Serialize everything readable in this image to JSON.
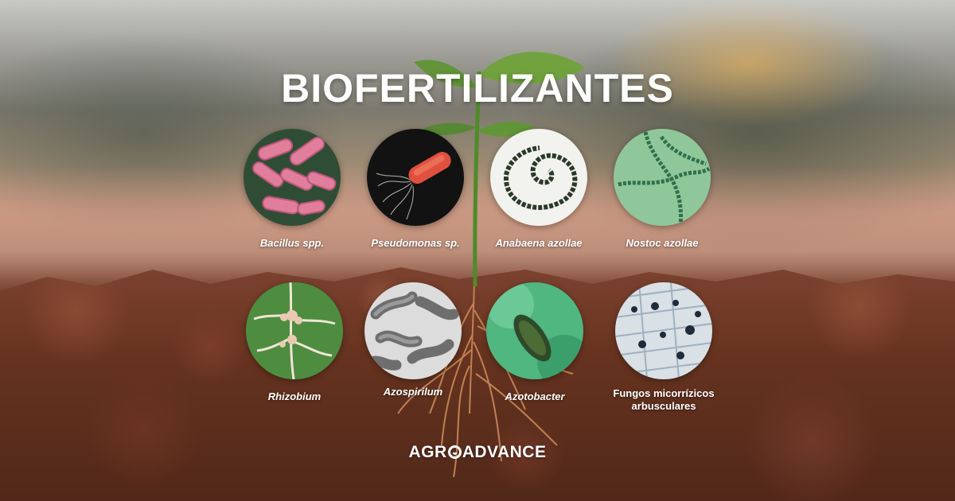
{
  "title": "BIOFERTILIZANTES",
  "organisms": [
    {
      "label": "Bacillus spp.",
      "image": "pink-rod-bacteria-micrograph"
    },
    {
      "label": "Pseudomonas sp.",
      "image": "flagellated-bacterium-micrograph"
    },
    {
      "label": "Anabaena azollae",
      "image": "spiral-cyanobacteria-micrograph"
    },
    {
      "label": "Nostoc azollae",
      "image": "green-filament-cyanobacteria-micrograph"
    },
    {
      "label": "Rhizobium",
      "image": "root-nodule-photo"
    },
    {
      "label": "Azospirilum",
      "image": "grey-curved-bacteria-micrograph"
    },
    {
      "label": "Azotobacter",
      "image": "green-cell-micrograph"
    },
    {
      "label": "Fungos micorrízicos arbusculares",
      "image": "mycorrhizal-root-cells-micrograph"
    }
  ],
  "logo": {
    "part1": "AGR",
    "part2": "ADVANCE"
  },
  "colors": {
    "title": "#ffffff",
    "soil": "#6b3322",
    "plant": "#4f8a2b"
  }
}
